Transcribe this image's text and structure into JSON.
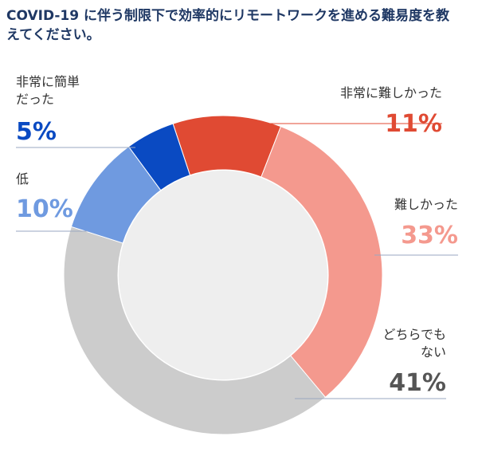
{
  "title": "COVID-19 に伴う制限下で効率的にリモートワークを進める難易度を教えてください。",
  "chart_data": {
    "type": "pie",
    "donut": true,
    "series": [
      {
        "label_lines": [
          "非常に難しかった"
        ],
        "value": 11,
        "value_label": "11%",
        "color": "#e04a33"
      },
      {
        "label_lines": [
          "難しかった"
        ],
        "value": 33,
        "value_label": "33%",
        "color": "#f4998e"
      },
      {
        "label_lines": [
          "どちらでも",
          "ない"
        ],
        "value": 41,
        "value_label": "41%",
        "color": "#cccccc"
      },
      {
        "label_lines": [
          "低"
        ],
        "value": 10,
        "value_label": "10%",
        "color": "#6f9ae0"
      },
      {
        "label_lines": [
          "非常に簡単",
          "だった"
        ],
        "value": 5,
        "value_label": "5%",
        "color": "#0a4ac2"
      }
    ],
    "value_label_colors": [
      "#e04a33",
      "#f4998e",
      "#555555",
      "#6f9ae0",
      "#0a4ac2"
    ],
    "center_color": "#eeeeee"
  }
}
